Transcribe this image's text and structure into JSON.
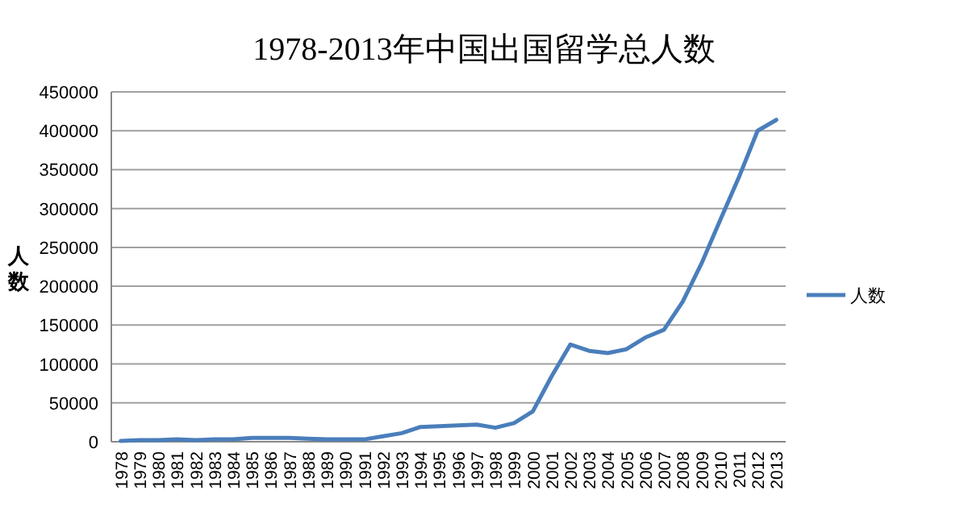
{
  "chart_data": {
    "type": "line",
    "title": "1978-2013年中国出国留学总人数",
    "ylabel": "人数",
    "categories": [
      "1978",
      "1979",
      "1980",
      "1981",
      "1982",
      "1983",
      "1984",
      "1985",
      "1986",
      "1987",
      "1988",
      "1989",
      "1990",
      "1991",
      "1992",
      "1993",
      "1994",
      "1995",
      "1996",
      "1997",
      "1998",
      "1999",
      "2000",
      "2001",
      "2002",
      "2003",
      "2004",
      "2005",
      "2006",
      "2007",
      "2008",
      "2009",
      "2010",
      "2011",
      "2012",
      "2013"
    ],
    "series": [
      {
        "name": "人数",
        "color": "#4a7ebb",
        "values": [
          1000,
          2000,
          2000,
          3000,
          2000,
          3000,
          3000,
          5000,
          5000,
          5000,
          4000,
          3000,
          3000,
          3000,
          7000,
          11000,
          19000,
          20000,
          21000,
          22000,
          18000,
          24000,
          39000,
          84000,
          125000,
          117000,
          114000,
          119000,
          134000,
          144000,
          180000,
          229000,
          285000,
          340000,
          400000,
          414000
        ]
      }
    ],
    "ylim": [
      0,
      450000
    ],
    "yticks": [
      0,
      50000,
      100000,
      150000,
      200000,
      250000,
      300000,
      350000,
      400000,
      450000
    ],
    "grid": "y",
    "legend": "right",
    "marker": "none",
    "line_style": "solid"
  }
}
